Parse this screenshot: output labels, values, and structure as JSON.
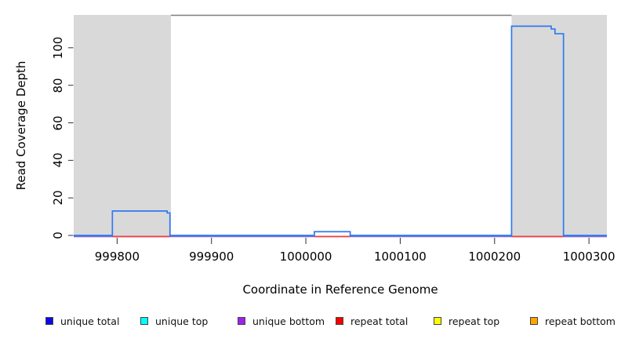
{
  "chart_data": {
    "type": "line",
    "subtype": "step",
    "title": "",
    "xlabel": "Coordinate in Reference Genome",
    "ylabel": "Read Coverage Depth",
    "xlim": [
      999754,
      1000319
    ],
    "ylim": [
      0,
      117.5
    ],
    "grid": false,
    "x_ticks": [
      999800,
      999900,
      1000000,
      1000100,
      1000200,
      1000300
    ],
    "x_tick_labels": [
      "999800",
      "999900",
      "1000000",
      "1000100",
      "1000200",
      "1000300"
    ],
    "y_ticks": [
      0,
      20,
      40,
      60,
      80,
      100
    ],
    "y_tick_labels": [
      "0",
      "20",
      "40",
      "60",
      "80",
      "100"
    ],
    "shaded_regions": [
      {
        "x0": 999754,
        "x1": 999857,
        "color": "#d9d9d9"
      },
      {
        "x0": 1000218,
        "x1": 1000319,
        "color": "#d9d9d9"
      }
    ],
    "top_boundary_segment": {
      "x0": 999857,
      "x1": 1000218,
      "y": 117.5,
      "color": "#7f7f7f"
    },
    "series": [
      {
        "name": "unique total",
        "color": "#2e7af0",
        "points": [
          [
            999754,
            0
          ],
          [
            999795,
            0
          ],
          [
            999795,
            13
          ],
          [
            999853,
            13
          ],
          [
            999853,
            12
          ],
          [
            999856,
            12
          ],
          [
            999856,
            0
          ],
          [
            1000009,
            0
          ],
          [
            1000009,
            2
          ],
          [
            1000047,
            2
          ],
          [
            1000047,
            0
          ],
          [
            1000218,
            0
          ],
          [
            1000218,
            111.5
          ],
          [
            1000260,
            111.5
          ],
          [
            1000260,
            110
          ],
          [
            1000264,
            110
          ],
          [
            1000264,
            107.5
          ],
          [
            1000273,
            107.5
          ],
          [
            1000273,
            0
          ],
          [
            1000319,
            0
          ]
        ]
      }
    ],
    "baseline_lines": [
      {
        "name": "unique bottom",
        "color": "#7e6bdb",
        "y": 0,
        "segments": [
          [
            999754,
            1000319
          ]
        ]
      },
      {
        "name": "repeat total",
        "color": "#f54040",
        "y": 0,
        "segments": [
          [
            999795,
            999856
          ],
          [
            1000009,
            1000047
          ],
          [
            1000218,
            1000273
          ]
        ]
      }
    ],
    "legend": [
      {
        "label": "unique total",
        "color": "#0a0ae6"
      },
      {
        "label": "unique top",
        "color": "#00ffff"
      },
      {
        "label": "unique bottom",
        "color": "#a020f0"
      },
      {
        "label": "repeat total",
        "color": "#f50000"
      },
      {
        "label": "repeat top",
        "color": "#ffff00"
      },
      {
        "label": "repeat bottom",
        "color": "#ffa500"
      }
    ],
    "legend_position": "bottom"
  }
}
